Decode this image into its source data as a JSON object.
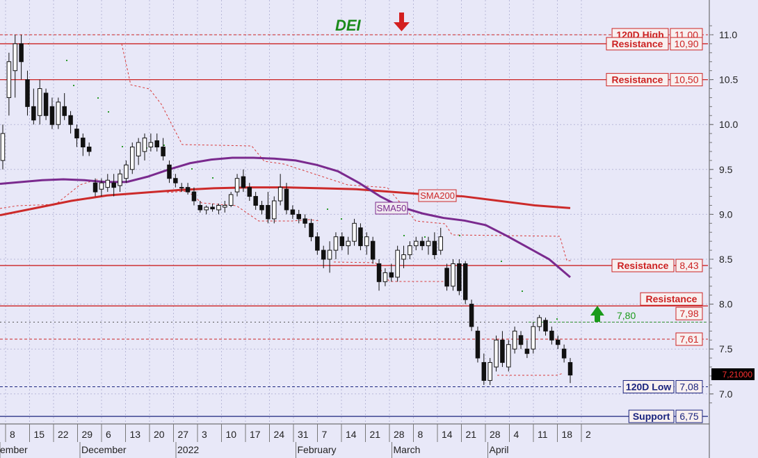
{
  "chart_data": {
    "type": "candlestick",
    "ticker": "DEI",
    "ylim": [
      6.65,
      11.18
    ],
    "y_ticks": [
      "7.0",
      "7.5",
      "8.0",
      "8.5",
      "9.0",
      "9.5",
      "10.0",
      "10.5",
      "11.0"
    ],
    "x_tick_labels": [
      "8",
      "15",
      "22",
      "29",
      "6",
      "13",
      "20",
      "27",
      "3",
      "10",
      "17",
      "24",
      "31",
      "7",
      "14",
      "21",
      "28",
      "8",
      "14",
      "21",
      "28",
      "4",
      "11",
      "18",
      "2"
    ],
    "month_labels": [
      "ember",
      "December",
      "2022",
      "February",
      "March",
      "April"
    ],
    "last_price_label": "7,21000",
    "levels": [
      {
        "label": "120D High",
        "value_label": "11,00",
        "value": 11.0,
        "style": "dashed",
        "color": "#cc2222"
      },
      {
        "label": "Resistance",
        "value_label": "10,90",
        "value": 10.9,
        "style": "solid",
        "color": "#cc2222"
      },
      {
        "label": "Resistance",
        "value_label": "10,50",
        "value": 10.5,
        "style": "solid",
        "color": "#cc2222"
      },
      {
        "label": "Resistance",
        "value_label": "8,43",
        "value": 8.43,
        "style": "solid",
        "color": "#cc2222"
      },
      {
        "label": "Resistance",
        "value_label": "7,98",
        "value": 7.98,
        "style": "solid",
        "color": "#cc2222"
      },
      {
        "label": "",
        "value_label": "7,61",
        "value": 7.61,
        "style": "dashed",
        "color": "#cc2222"
      },
      {
        "label": "120D Low",
        "value_label": "7,08",
        "value": 7.08,
        "style": "dashed",
        "color": "#1a237e"
      },
      {
        "label": "Support",
        "value_label": "6,75",
        "value": 6.75,
        "style": "solid",
        "color": "#1a237e"
      }
    ],
    "target_label": "7,80",
    "target_value": 7.8,
    "sma_labels": {
      "sma50": "SMA50",
      "sma200": "SMA200"
    },
    "sma50": [
      9.34,
      9.36,
      9.38,
      9.39,
      9.38,
      9.36,
      9.36,
      9.42,
      9.5,
      9.57,
      9.61,
      9.63,
      9.63,
      9.62,
      9.6,
      9.55,
      9.48,
      9.35,
      9.2,
      9.08,
      9.01,
      8.96,
      8.93,
      8.88,
      8.76,
      8.63,
      8.5,
      8.3
    ],
    "sma200": [
      8.99,
      9.07,
      9.15,
      9.21,
      9.24,
      9.27,
      9.29,
      9.3,
      9.3,
      9.29,
      9.28,
      9.25,
      9.22,
      9.2,
      9.15,
      9.1,
      9.07
    ],
    "candles": [
      {
        "o": 9.6,
        "h": 10.0,
        "l": 9.5,
        "c": 9.9
      },
      {
        "o": 10.3,
        "h": 10.8,
        "l": 10.1,
        "c": 10.7
      },
      {
        "o": 10.6,
        "h": 11.0,
        "l": 10.3,
        "c": 10.9
      },
      {
        "o": 10.9,
        "h": 11.0,
        "l": 10.5,
        "c": 10.7
      },
      {
        "o": 10.5,
        "h": 10.6,
        "l": 10.1,
        "c": 10.2
      },
      {
        "o": 10.2,
        "h": 10.4,
        "l": 10.0,
        "c": 10.05
      },
      {
        "o": 10.1,
        "h": 10.5,
        "l": 10.0,
        "c": 10.4
      },
      {
        "o": 10.35,
        "h": 10.4,
        "l": 10.05,
        "c": 10.1
      },
      {
        "o": 10.2,
        "h": 10.3,
        "l": 9.95,
        "c": 10.0
      },
      {
        "o": 10.0,
        "h": 10.3,
        "l": 9.95,
        "c": 10.25
      },
      {
        "o": 10.2,
        "h": 10.35,
        "l": 10.05,
        "c": 10.1
      },
      {
        "o": 10.1,
        "h": 10.15,
        "l": 9.9,
        "c": 10.0
      },
      {
        "o": 9.95,
        "h": 10.0,
        "l": 9.75,
        "c": 9.85
      },
      {
        "o": 9.85,
        "h": 9.9,
        "l": 9.65,
        "c": 9.75
      },
      {
        "o": 9.75,
        "h": 9.8,
        "l": 9.65,
        "c": 9.7
      },
      {
        "o": 9.35,
        "h": 9.4,
        "l": 9.2,
        "c": 9.25
      },
      {
        "o": 9.28,
        "h": 9.4,
        "l": 9.2,
        "c": 9.35
      },
      {
        "o": 9.3,
        "h": 9.45,
        "l": 9.25,
        "c": 9.38
      },
      {
        "o": 9.35,
        "h": 9.45,
        "l": 9.2,
        "c": 9.3
      },
      {
        "o": 9.32,
        "h": 9.5,
        "l": 9.25,
        "c": 9.45
      },
      {
        "o": 9.4,
        "h": 9.6,
        "l": 9.35,
        "c": 9.55
      },
      {
        "o": 9.5,
        "h": 9.8,
        "l": 9.45,
        "c": 9.75
      },
      {
        "o": 9.65,
        "h": 9.85,
        "l": 9.55,
        "c": 9.8
      },
      {
        "o": 9.7,
        "h": 9.9,
        "l": 9.6,
        "c": 9.85
      },
      {
        "o": 9.75,
        "h": 9.9,
        "l": 9.7,
        "c": 9.8
      },
      {
        "o": 9.82,
        "h": 9.9,
        "l": 9.7,
        "c": 9.75
      },
      {
        "o": 9.75,
        "h": 9.85,
        "l": 9.6,
        "c": 9.65
      },
      {
        "o": 9.55,
        "h": 9.6,
        "l": 9.35,
        "c": 9.4
      },
      {
        "o": 9.4,
        "h": 9.45,
        "l": 9.3,
        "c": 9.35
      },
      {
        "o": 9.3,
        "h": 9.35,
        "l": 9.25,
        "c": 9.3
      },
      {
        "o": 9.3,
        "h": 9.35,
        "l": 9.22,
        "c": 9.25
      },
      {
        "o": 9.25,
        "h": 9.3,
        "l": 9.1,
        "c": 9.15
      },
      {
        "o": 9.1,
        "h": 9.15,
        "l": 9.02,
        "c": 9.05
      },
      {
        "o": 9.05,
        "h": 9.1,
        "l": 9.0,
        "c": 9.08
      },
      {
        "o": 9.08,
        "h": 9.12,
        "l": 9.03,
        "c": 9.06
      },
      {
        "o": 9.05,
        "h": 9.12,
        "l": 9.0,
        "c": 9.1
      },
      {
        "o": 9.08,
        "h": 9.15,
        "l": 9.02,
        "c": 9.1
      },
      {
        "o": 9.1,
        "h": 9.25,
        "l": 9.08,
        "c": 9.22
      },
      {
        "o": 9.25,
        "h": 9.45,
        "l": 9.2,
        "c": 9.4
      },
      {
        "o": 9.42,
        "h": 9.5,
        "l": 9.25,
        "c": 9.3
      },
      {
        "o": 9.3,
        "h": 9.35,
        "l": 9.15,
        "c": 9.2
      },
      {
        "o": 9.2,
        "h": 9.25,
        "l": 9.05,
        "c": 9.1
      },
      {
        "o": 9.1,
        "h": 9.15,
        "l": 9.0,
        "c": 9.05
      },
      {
        "o": 9.1,
        "h": 9.25,
        "l": 8.9,
        "c": 8.95
      },
      {
        "o": 8.95,
        "h": 9.2,
        "l": 8.9,
        "c": 9.15
      },
      {
        "o": 9.15,
        "h": 9.45,
        "l": 9.1,
        "c": 9.3
      },
      {
        "o": 9.28,
        "h": 9.35,
        "l": 9.0,
        "c": 9.05
      },
      {
        "o": 9.05,
        "h": 9.1,
        "l": 8.95,
        "c": 9.0
      },
      {
        "o": 9.0,
        "h": 9.05,
        "l": 8.9,
        "c": 8.95
      },
      {
        "o": 8.95,
        "h": 9.0,
        "l": 8.85,
        "c": 8.9
      },
      {
        "o": 8.9,
        "h": 8.95,
        "l": 8.7,
        "c": 8.75
      },
      {
        "o": 8.75,
        "h": 8.8,
        "l": 8.55,
        "c": 8.6
      },
      {
        "o": 8.6,
        "h": 8.65,
        "l": 8.4,
        "c": 8.5
      },
      {
        "o": 8.5,
        "h": 8.7,
        "l": 8.35,
        "c": 8.6
      },
      {
        "o": 8.6,
        "h": 8.8,
        "l": 8.5,
        "c": 8.75
      },
      {
        "o": 8.75,
        "h": 8.8,
        "l": 8.6,
        "c": 8.65
      },
      {
        "o": 8.65,
        "h": 8.75,
        "l": 8.55,
        "c": 8.7
      },
      {
        "o": 8.7,
        "h": 8.95,
        "l": 8.65,
        "c": 8.9
      },
      {
        "o": 8.85,
        "h": 8.9,
        "l": 8.6,
        "c": 8.65
      },
      {
        "o": 8.65,
        "h": 8.8,
        "l": 8.55,
        "c": 8.75
      },
      {
        "o": 8.7,
        "h": 8.75,
        "l": 8.45,
        "c": 8.5
      },
      {
        "o": 8.45,
        "h": 8.5,
        "l": 8.15,
        "c": 8.25
      },
      {
        "o": 8.25,
        "h": 8.4,
        "l": 8.2,
        "c": 8.35
      },
      {
        "o": 8.35,
        "h": 8.45,
        "l": 8.25,
        "c": 8.3
      },
      {
        "o": 8.3,
        "h": 8.65,
        "l": 8.25,
        "c": 8.6
      },
      {
        "o": 8.5,
        "h": 8.65,
        "l": 8.4,
        "c": 8.55
      },
      {
        "o": 8.55,
        "h": 8.7,
        "l": 8.5,
        "c": 8.65
      },
      {
        "o": 8.65,
        "h": 8.75,
        "l": 8.6,
        "c": 8.7
      },
      {
        "o": 8.7,
        "h": 8.75,
        "l": 8.6,
        "c": 8.65
      },
      {
        "o": 8.65,
        "h": 8.75,
        "l": 8.55,
        "c": 8.7
      },
      {
        "o": 8.7,
        "h": 8.8,
        "l": 8.5,
        "c": 8.55
      },
      {
        "o": 8.6,
        "h": 8.85,
        "l": 8.55,
        "c": 8.75
      },
      {
        "o": 8.4,
        "h": 8.45,
        "l": 8.15,
        "c": 8.2
      },
      {
        "o": 8.2,
        "h": 8.5,
        "l": 8.15,
        "c": 8.45
      },
      {
        "o": 8.45,
        "h": 8.5,
        "l": 8.1,
        "c": 8.15
      },
      {
        "o": 8.45,
        "h": 8.48,
        "l": 8.0,
        "c": 8.05
      },
      {
        "o": 8.0,
        "h": 8.05,
        "l": 7.7,
        "c": 7.75
      },
      {
        "o": 7.7,
        "h": 7.75,
        "l": 7.35,
        "c": 7.4
      },
      {
        "o": 7.35,
        "h": 7.45,
        "l": 7.1,
        "c": 7.15
      },
      {
        "o": 7.15,
        "h": 7.4,
        "l": 7.1,
        "c": 7.35
      },
      {
        "o": 7.3,
        "h": 7.65,
        "l": 7.25,
        "c": 7.6
      },
      {
        "o": 7.6,
        "h": 7.7,
        "l": 7.3,
        "c": 7.35
      },
      {
        "o": 7.3,
        "h": 7.6,
        "l": 7.25,
        "c": 7.55
      },
      {
        "o": 7.5,
        "h": 7.75,
        "l": 7.45,
        "c": 7.7
      },
      {
        "o": 7.65,
        "h": 7.7,
        "l": 7.5,
        "c": 7.55
      },
      {
        "o": 7.5,
        "h": 7.6,
        "l": 7.4,
        "c": 7.45
      },
      {
        "o": 7.5,
        "h": 7.8,
        "l": 7.45,
        "c": 7.75
      },
      {
        "o": 7.75,
        "h": 7.88,
        "l": 7.7,
        "c": 7.85
      },
      {
        "o": 7.82,
        "h": 7.85,
        "l": 7.65,
        "c": 7.7
      },
      {
        "o": 7.7,
        "h": 7.75,
        "l": 7.55,
        "c": 7.6
      },
      {
        "o": 7.6,
        "h": 7.65,
        "l": 7.5,
        "c": 7.55
      },
      {
        "o": 7.5,
        "h": 7.55,
        "l": 7.35,
        "c": 7.4
      },
      {
        "o": 7.35,
        "h": 7.4,
        "l": 7.12,
        "c": 7.21
      }
    ]
  }
}
